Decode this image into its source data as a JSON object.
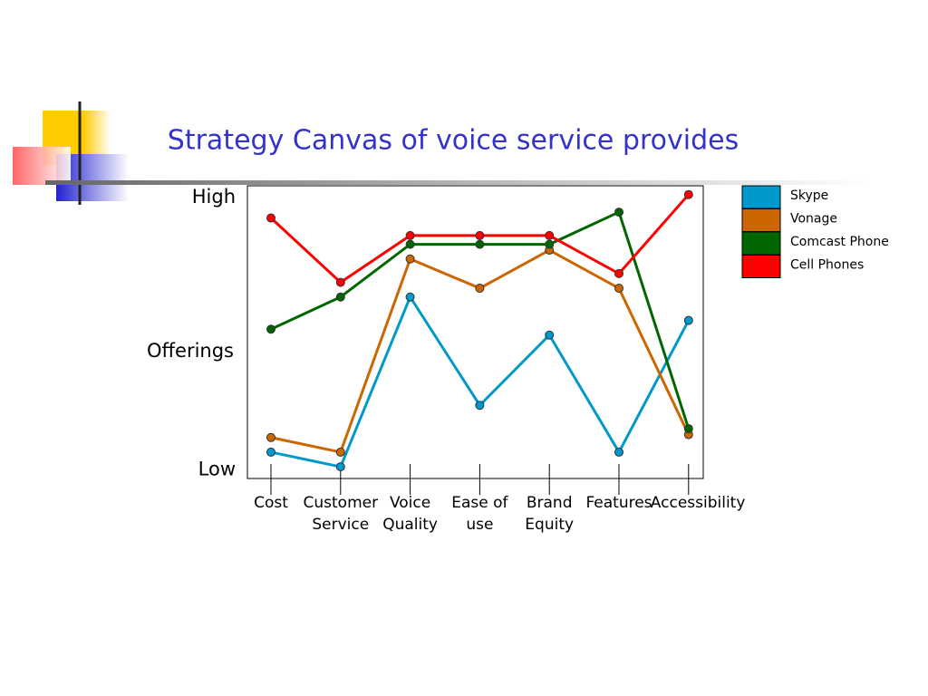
{
  "chart_data": {
    "type": "line",
    "title": "Strategy Canvas of voice service provides",
    "y_label": "Offerings",
    "categories": [
      "Cost",
      "Customer Service",
      "Voice Quality",
      "Ease of use",
      "Brand Equity",
      "Features",
      "Accessibility"
    ],
    "ylim": [
      0,
      10
    ],
    "yticks": [
      {
        "value": 0.3,
        "label": "Low"
      },
      {
        "value": 9.6,
        "label": "High"
      }
    ],
    "series": [
      {
        "name": "Skype",
        "color": "#0099cc",
        "values": [
          0.9,
          0.4,
          6.2,
          2.5,
          4.9,
          0.9,
          5.4
        ]
      },
      {
        "name": "Vonage",
        "color": "#cc6600",
        "values": [
          1.4,
          0.9,
          7.5,
          6.5,
          7.8,
          6.5,
          1.5
        ]
      },
      {
        "name": "Comcast Phone",
        "color": "#006600",
        "values": [
          5.1,
          6.2,
          8.0,
          8.0,
          8.0,
          9.1,
          1.7
        ]
      },
      {
        "name": "Cell Phones",
        "color": "#ff0000",
        "values": [
          8.9,
          6.7,
          8.3,
          8.3,
          8.3,
          7.0,
          9.7
        ]
      }
    ]
  }
}
